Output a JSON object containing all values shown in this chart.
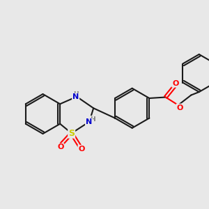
{
  "background_color": "#e8e8e8",
  "bond_color": "#1a1a1a",
  "bond_width": 1.5,
  "atom_colors": {
    "N": "#0000cc",
    "S": "#cccc00",
    "O": "#ff0000",
    "C": "#1a1a1a",
    "H": "#777777"
  },
  "figsize": [
    3.0,
    3.0
  ],
  "dpi": 100,
  "xlim": [
    0,
    10
  ],
  "ylim": [
    0,
    10
  ],
  "NH_color": "#1a1a1a",
  "NH_N_color": "#0000cc",
  "NH_H_color": "#777777"
}
